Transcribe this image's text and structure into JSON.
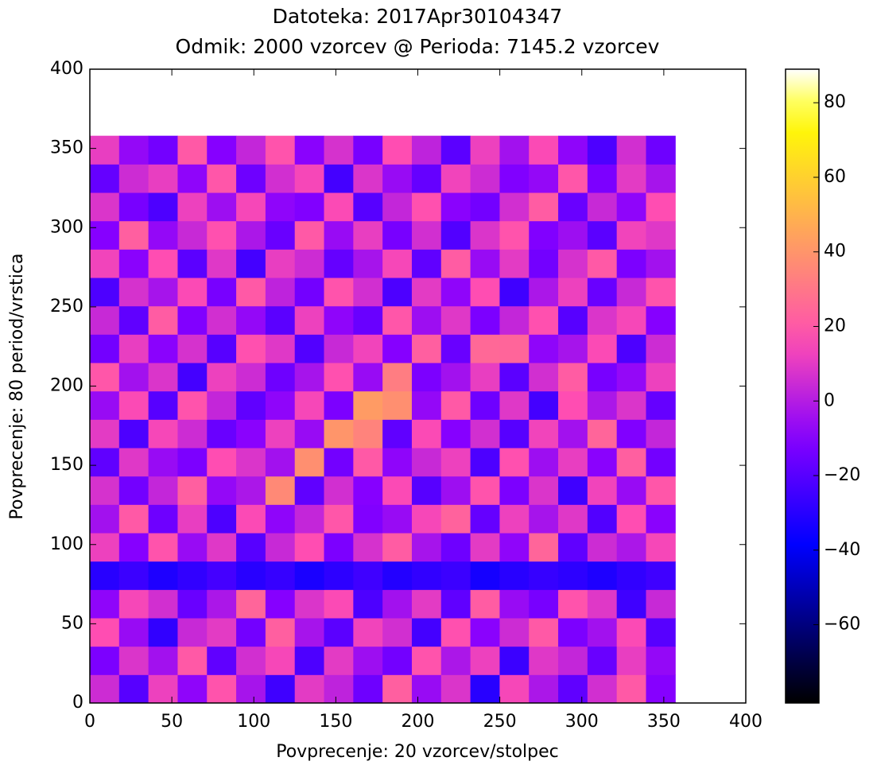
{
  "chart_data": {
    "type": "heatmap",
    "title": "Datoteka: 2017Apr30104347",
    "subtitle": "Odmik: 2000 vzorcev @ Perioda: 7145.2 vzorcev",
    "x_label": "Povprecenje: 20 vzorcev/stolpec",
    "y_label": "Povprecenje: 80 period/vrstica",
    "xlim": [
      0,
      400
    ],
    "xticks": [
      0,
      50,
      100,
      150,
      200,
      250,
      300,
      350,
      400
    ],
    "ylim": [
      0,
      400
    ],
    "yticks": [
      0,
      50,
      100,
      150,
      200,
      250,
      300,
      350,
      400
    ],
    "x_extent": [
      0,
      357
    ],
    "y_extent": [
      0,
      358
    ],
    "colormap": "gnuplot2",
    "clim": [
      -81,
      89
    ],
    "cticks": [
      {
        "value": -60,
        "label": "−60"
      },
      {
        "value": -40,
        "label": "−40"
      },
      {
        "value": -20,
        "label": "−20"
      },
      0,
      20,
      40,
      60,
      80
    ],
    "z": [
      [
        5,
        -20,
        12,
        -8,
        18,
        -3,
        -25,
        10,
        2,
        -15,
        22,
        -6,
        8,
        -30,
        14,
        -2,
        -18,
        6,
        20,
        -10
      ],
      [
        -12,
        8,
        -4,
        20,
        -18,
        6,
        14,
        -22,
        10,
        -5,
        -14,
        18,
        -2,
        12,
        -26,
        9,
        3,
        -16,
        11,
        -7
      ],
      [
        16,
        -6,
        -28,
        4,
        10,
        -14,
        22,
        -3,
        -19,
        13,
        6,
        -24,
        17,
        -9,
        5,
        20,
        -12,
        -4,
        15,
        -20
      ],
      [
        -8,
        14,
        6,
        -16,
        -2,
        24,
        -10,
        8,
        15,
        -22,
        -4,
        10,
        -18,
        21,
        -6,
        -13,
        18,
        9,
        -25,
        4
      ],
      [
        -30,
        -26,
        -32,
        -28,
        -24,
        -30,
        -27,
        -33,
        -29,
        -25,
        -31,
        -28,
        -26,
        -34,
        -30,
        -27,
        -29,
        -32,
        -28,
        -25
      ],
      [
        12,
        -10,
        18,
        -6,
        9,
        -20,
        4,
        16,
        -12,
        7,
        21,
        -3,
        -15,
        10,
        -8,
        24,
        -18,
        5,
        -2,
        14
      ],
      [
        -4,
        20,
        -15,
        11,
        -22,
        15,
        -8,
        3,
        19,
        -11,
        -6,
        14,
        23,
        -17,
        12,
        -3,
        9,
        -21,
        16,
        -9
      ],
      [
        7,
        -14,
        3,
        22,
        -7,
        -2,
        36,
        -18,
        6,
        -10,
        15,
        -20,
        -5,
        18,
        -12,
        8,
        -25,
        13,
        -6,
        19
      ],
      [
        -18,
        9,
        -6,
        -12,
        16,
        8,
        -4,
        38,
        -14,
        20,
        -8,
        4,
        12,
        -22,
        17,
        -5,
        11,
        -9,
        22,
        -14
      ],
      [
        10,
        -22,
        14,
        5,
        -16,
        -9,
        12,
        -6,
        40,
        34,
        -18,
        15,
        -10,
        6,
        -20,
        13,
        -4,
        24,
        -11,
        3
      ],
      [
        -6,
        15,
        -20,
        18,
        3,
        -18,
        -8,
        14,
        -12,
        42,
        38,
        -7,
        20,
        -15,
        9,
        -24,
        16,
        -2,
        8,
        -17
      ],
      [
        19,
        -4,
        8,
        -24,
        12,
        5,
        -15,
        -3,
        17,
        -6,
        32,
        -12,
        -4,
        11,
        -19,
        6,
        21,
        -13,
        -7,
        12
      ],
      [
        -14,
        11,
        -9,
        7,
        -20,
        17,
        9,
        -21,
        4,
        13,
        -10,
        22,
        -16,
        25,
        24,
        -8,
        -3,
        15,
        -22,
        5
      ],
      [
        4,
        -18,
        21,
        -11,
        6,
        -7,
        -19,
        12,
        -8,
        -16,
        19,
        -5,
        9,
        -12,
        3,
        17,
        -20,
        8,
        14,
        -10
      ],
      [
        -22,
        7,
        -3,
        15,
        -13,
        20,
        2,
        -14,
        18,
        6,
        -22,
        10,
        -8,
        16,
        -25,
        -2,
        12,
        -16,
        4,
        18
      ],
      [
        13,
        -9,
        16,
        -19,
        9,
        -24,
        11,
        5,
        -17,
        -3,
        14,
        -18,
        21,
        -6,
        10,
        -14,
        7,
        20,
        -12,
        -4
      ],
      [
        -10,
        22,
        -7,
        4,
        17,
        -2,
        -16,
        20,
        -6,
        11,
        -13,
        6,
        -21,
        8,
        18,
        -11,
        -5,
        -19,
        13,
        9
      ],
      [
        8,
        -13,
        -22,
        12,
        -5,
        14,
        -8,
        -11,
        15,
        -20,
        3,
        17,
        -9,
        -14,
        6,
        21,
        -16,
        4,
        -8,
        16
      ],
      [
        -17,
        5,
        11,
        -8,
        19,
        -15,
        6,
        14,
        -24,
        8,
        -6,
        -17,
        13,
        5,
        -11,
        -7,
        19,
        -12,
        10,
        -3
      ],
      [
        11,
        -7,
        -14,
        20,
        -10,
        3,
        18,
        -9,
        7,
        -13,
        16,
        2,
        -19,
        12,
        -4,
        15,
        -8,
        -22,
        6,
        -15
      ]
    ]
  }
}
